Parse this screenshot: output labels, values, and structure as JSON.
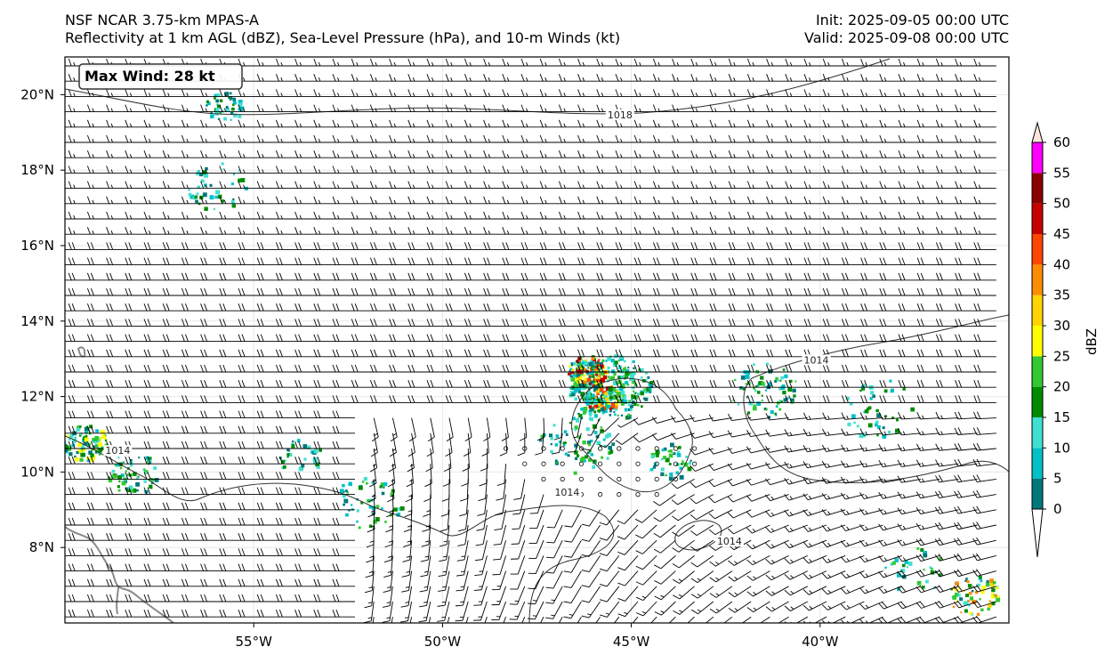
{
  "header": {
    "model_line": "NSF NCAR 3.75-km MPAS-A",
    "fields_line": "Reflectivity at 1 km AGL (dBZ), Sea-Level Pressure (hPa), and 10-m Winds (kt)",
    "init_line": "Init: 2025-09-05 00:00 UTC",
    "valid_line": "Valid: 2025-09-08 00:00 UTC"
  },
  "max_wind_label": "Max Wind: 28 kt",
  "map": {
    "lon_range": [
      -60.0,
      -35.0
    ],
    "lat_range": [
      6.0,
      21.0
    ],
    "lon_ticks": [
      {
        "value": -55,
        "label": "55°W"
      },
      {
        "value": -50,
        "label": "50°W"
      },
      {
        "value": -45,
        "label": "45°W"
      },
      {
        "value": -40,
        "label": "40°W"
      }
    ],
    "lat_ticks": [
      {
        "value": 8,
        "label": "8°N"
      },
      {
        "value": 10,
        "label": "10°N"
      },
      {
        "value": 12,
        "label": "12°N"
      },
      {
        "value": 14,
        "label": "14°N"
      },
      {
        "value": 16,
        "label": "16°N"
      },
      {
        "value": 18,
        "label": "18°N"
      },
      {
        "value": 20,
        "label": "20°N"
      }
    ],
    "isobar_labels": [
      {
        "text": "1018",
        "lon": -45.3,
        "lat": 19.4
      },
      {
        "text": "1014",
        "lon": -40.1,
        "lat": 12.9
      },
      {
        "text": "1014",
        "lon": -46.7,
        "lat": 9.4
      },
      {
        "text": "1014",
        "lon": -42.4,
        "lat": 8.1
      },
      {
        "text": "1014",
        "lon": -58.6,
        "lat": 10.5
      }
    ],
    "storm_center": {
      "lon": -45.6,
      "lat": 12.3
    }
  },
  "colorbar": {
    "unit_label": "dBZ",
    "tick_labels": [
      "0",
      "5",
      "10",
      "15",
      "20",
      "25",
      "30",
      "35",
      "40",
      "45",
      "50",
      "55",
      "60"
    ],
    "colors": [
      "#00787a",
      "#00c0c8",
      "#40e0d0",
      "#008c00",
      "#32c832",
      "#ffff00",
      "#ffd400",
      "#ff8c00",
      "#ff4500",
      "#c80000",
      "#8b0000",
      "#ff00ff",
      "#ffe4dc"
    ],
    "under_color": "#ffffff",
    "over_color": "#ffe4dc"
  },
  "colors": {
    "isobar": "#333333",
    "coast": "#8a8a8a",
    "barb": "#000000",
    "grid": "#e8e8e8"
  }
}
